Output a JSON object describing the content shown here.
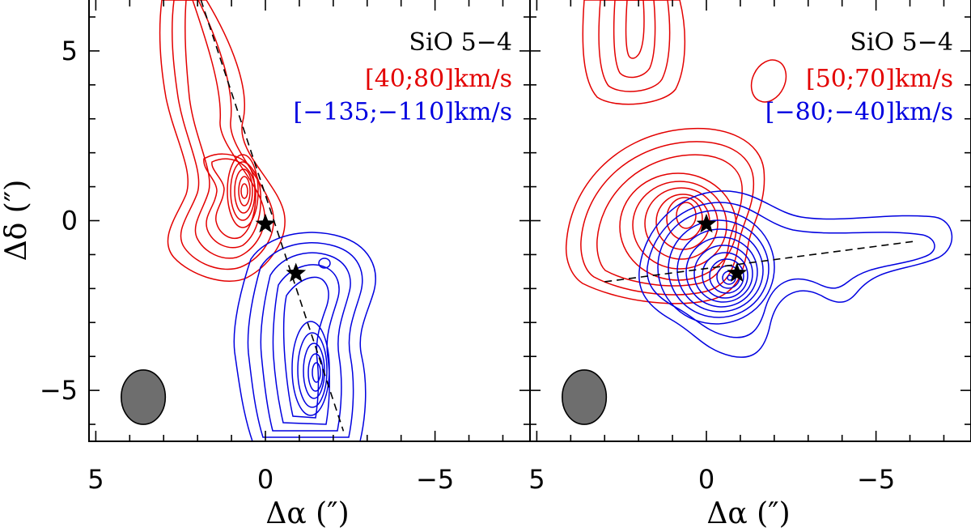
{
  "figure": {
    "x_label": "Δα (″)",
    "y_label": "Δδ (″)",
    "colors": {
      "red": "#e30000",
      "blue": "#0000e0",
      "black": "#000000",
      "beam": "#6e6e6e"
    }
  },
  "chart_data": [
    {
      "type": "contour",
      "id": "left",
      "title": "SiO 5−4",
      "red_range": "[40;80]km/s",
      "blue_range": "[−135;−110]km/s",
      "xlim": [
        5.2,
        -7.8
      ],
      "ylim": [
        -6.5,
        6.5
      ],
      "xticks": [
        5,
        0,
        -5
      ],
      "yticks": [
        5,
        0,
        -5
      ],
      "stars": [
        {
          "x": 0.0,
          "y": -0.1
        },
        {
          "x": -0.9,
          "y": -1.55
        }
      ],
      "jet_axis": [
        {
          "x": 1.9,
          "y": 6.5
        },
        {
          "x": -2.3,
          "y": -6.2
        }
      ],
      "beam": {
        "x": 3.6,
        "y": -5.2,
        "major": 1.6,
        "minor": 1.3
      },
      "red_lobe": {
        "x": 0.6,
        "y": 0.5,
        "ring_count": 10
      },
      "blue_lobe": {
        "x": -2.0,
        "y": -3.5,
        "ring_count": 11
      }
    },
    {
      "type": "contour",
      "id": "right",
      "title": "SiO 5−4",
      "red_range": "[50;70]km/s",
      "blue_range": "[−80;−40]km/s",
      "xlim": [
        5.2,
        -7.8
      ],
      "ylim": [
        -6.5,
        6.5
      ],
      "xticks": [
        5,
        0,
        -5
      ],
      "yticks": [
        5,
        0,
        -5
      ],
      "stars": [
        {
          "x": 0.0,
          "y": -0.1
        },
        {
          "x": -0.9,
          "y": -1.55
        }
      ],
      "jet_axis": [
        {
          "x": 3.0,
          "y": -1.8
        },
        {
          "x": -6.2,
          "y": -0.6
        }
      ],
      "beam": {
        "x": 3.6,
        "y": -5.2,
        "major": 1.6,
        "minor": 1.3
      },
      "red_lobe": {
        "x": 0.2,
        "y": 0.0,
        "ring_count": 10
      },
      "blue_lobe": {
        "x": -1.0,
        "y": -1.6,
        "ring_count": 12
      }
    }
  ]
}
